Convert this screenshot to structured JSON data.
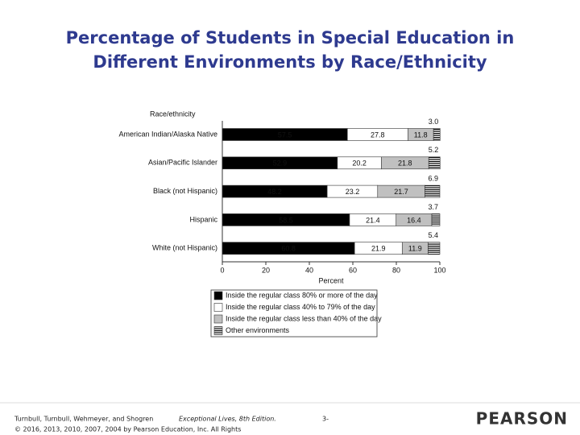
{
  "title": [
    "Percentage of Students in Special Education in",
    "Different Environments by Race/Ethnicity"
  ],
  "chart_data": {
    "type": "stacked-barh",
    "category_header": "Race/ethnicity",
    "categories": [
      "American Indian/Alaska Native",
      "Asian/Pacific Islander",
      "Black (not Hispanic)",
      "Hispanic",
      "White (not Hispanic)"
    ],
    "series": [
      {
        "name": "Inside the regular class 80% or more of the day",
        "color": "#000000",
        "values": [
          57.5,
          52.9,
          48.2,
          58.5,
          60.8
        ]
      },
      {
        "name": "Inside the regular class 40% to 79% of the day",
        "color": "#ffffff",
        "values": [
          27.8,
          20.2,
          23.2,
          21.4,
          21.9
        ]
      },
      {
        "name": "Inside the regular class less than 40% of the day",
        "color": "#c0c0c0",
        "values": [
          11.8,
          21.8,
          21.7,
          16.4,
          11.9
        ]
      },
      {
        "name": "Other environments",
        "color": "#000000",
        "pattern": "stripes",
        "values": [
          3,
          5.2,
          6.9,
          3.7,
          5.4
        ],
        "value_labels": [
          "3.0",
          "5.2",
          "6.9",
          "3.7",
          "5.4"
        ]
      }
    ],
    "xlabel": "Percent",
    "xlim": [
      0,
      100
    ],
    "xticks": [
      0,
      20,
      40,
      60,
      80,
      100
    ]
  },
  "footer": {
    "authors": "Turnbull, Turnbull, Wehmeyer, and Shogren",
    "book": "Exceptional Lives, 8th Edition.",
    "copyright": "© 2016, 2013, 2010, 2007, 2004 by Pearson Education, Inc. All Rights",
    "page": "3-",
    "brand": "PEARSON"
  }
}
